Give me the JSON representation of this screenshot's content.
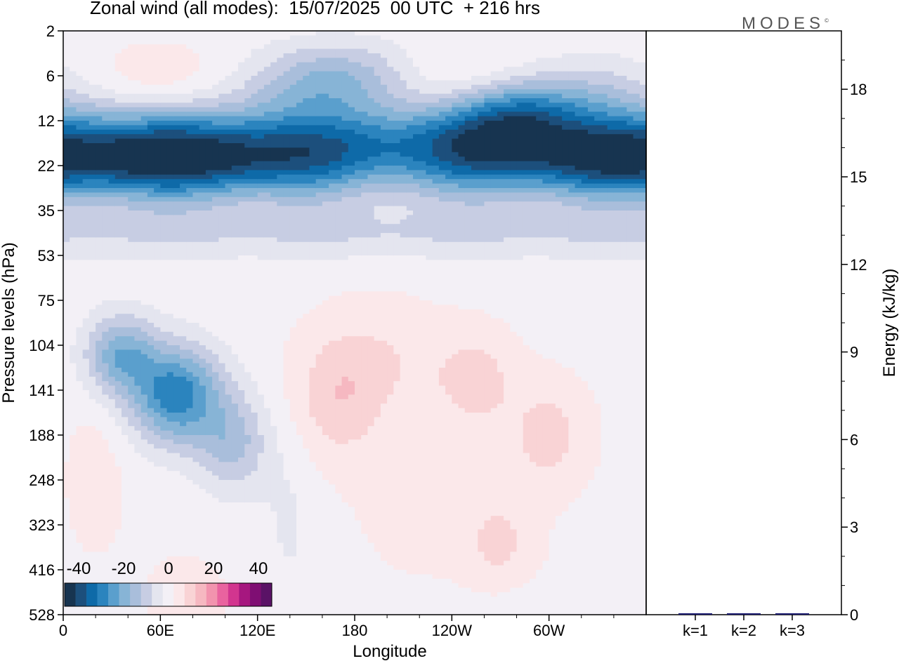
{
  "title": "Zonal wind (all modes):  15/07/2025  00 UTC  + 216 hrs",
  "brand": "MODES",
  "brand_mark": "©",
  "chart_data": [
    {
      "type": "heatmap",
      "xlabel": "Longitude",
      "ylabel": "Pressure levels (hPa)",
      "x_ticks": [
        "0",
        "60E",
        "120E",
        "180",
        "120W",
        "60W"
      ],
      "x_tick_deg": [
        0,
        60,
        120,
        180,
        240,
        300
      ],
      "xlim": [
        0,
        360
      ],
      "y_ticks": [
        "2",
        "6",
        "12",
        "22",
        "35",
        "53",
        "75",
        "104",
        "141",
        "188",
        "248",
        "323",
        "416",
        "528"
      ],
      "colorbar": {
        "ticks": [
          "-40",
          "-20",
          "0",
          "20",
          "40"
        ],
        "range": [
          -45,
          45
        ],
        "colors": [
          "#173450",
          "#1c4f7c",
          "#0e6aa8",
          "#2b84be",
          "#5a9fcd",
          "#87b4d6",
          "#a9bedb",
          "#c7cde3",
          "#e4e5ef",
          "#f3f0f6",
          "#fbe8ea",
          "#f9d3d5",
          "#f6b8c1",
          "#f293ae",
          "#e9639f",
          "#d2358f",
          "#a6177f",
          "#7f0e73",
          "#5a1266"
        ]
      },
      "features": [
        {
          "lon": 30,
          "level": 3,
          "value": -15,
          "lon_spread": 70,
          "level_spread": 0.8
        },
        {
          "lon": 110,
          "level": 3,
          "value": -12,
          "lon_spread": 60,
          "level_spread": 0.8
        },
        {
          "lon": 300,
          "level": 3,
          "value": -10,
          "lon_spread": 70,
          "level_spread": 0.8
        },
        {
          "lon": 275,
          "level": 2,
          "value": -12,
          "lon_spread": 40,
          "level_spread": 0.8
        },
        {
          "lon": 175,
          "level": 1,
          "value": -12,
          "lon_spread": 50,
          "level_spread": 0.8
        },
        {
          "lon": 285,
          "level": 1.7,
          "value": -10,
          "lon_spread": 40,
          "level_spread": 0.7
        },
        {
          "lon": 70,
          "level": 8.1,
          "value": -30,
          "lon_spread": 28,
          "level_spread": 1.1
        },
        {
          "lon": 35,
          "level": 7.2,
          "value": -20,
          "lon_spread": 22,
          "level_spread": 0.9
        },
        {
          "lon": 105,
          "level": 9.2,
          "value": -14,
          "lon_spread": 22,
          "level_spread": 1.1
        },
        {
          "lon": 170,
          "level": 8.2,
          "value": 9,
          "lon_spread": 28,
          "level_spread": 1.4
        },
        {
          "lon": 200,
          "level": 7.3,
          "value": 5,
          "lon_spread": 40,
          "level_spread": 1.3
        },
        {
          "lon": 255,
          "level": 7.8,
          "value": 8,
          "lon_spread": 25,
          "level_spread": 1.1
        },
        {
          "lon": 300,
          "level": 9.0,
          "value": 8,
          "lon_spread": 25,
          "level_spread": 1.2
        },
        {
          "lon": 270,
          "level": 11.5,
          "value": 6,
          "lon_spread": 22,
          "level_spread": 1.2
        },
        {
          "lon": 230,
          "level": 10.8,
          "value": 3,
          "lon_spread": 50,
          "level_spread": 1.6
        },
        {
          "lon": 75,
          "level": 12.6,
          "value": 4,
          "lon_spread": 25,
          "level_spread": 0.9
        },
        {
          "lon": 20,
          "level": 10.0,
          "value": 4,
          "lon_spread": 18,
          "level_spread": 1.6
        },
        {
          "lon": 140,
          "level": 11.0,
          "value": -4,
          "lon_spread": 18,
          "level_spread": 2.0
        },
        {
          "lon": 300,
          "level": 12.8,
          "value": -3,
          "lon_spread": 60,
          "level_spread": 0.6
        }
      ],
      "jet_bands": [
        {
          "level": 2.6,
          "value": -32,
          "width": 1.0
        },
        {
          "level": 4.5,
          "value": -8,
          "width": 0.6
        }
      ]
    },
    {
      "type": "bar",
      "ylabel": "Energy (kJ/kg)",
      "categories": [
        "k=1",
        "k=2",
        "k=3"
      ],
      "values": [
        0.04,
        0.02,
        0.01
      ],
      "ylim": [
        0,
        20
      ],
      "y_ticks": [
        0,
        3,
        6,
        9,
        12,
        15,
        18
      ],
      "bar_color": "#1a1a6e"
    }
  ]
}
